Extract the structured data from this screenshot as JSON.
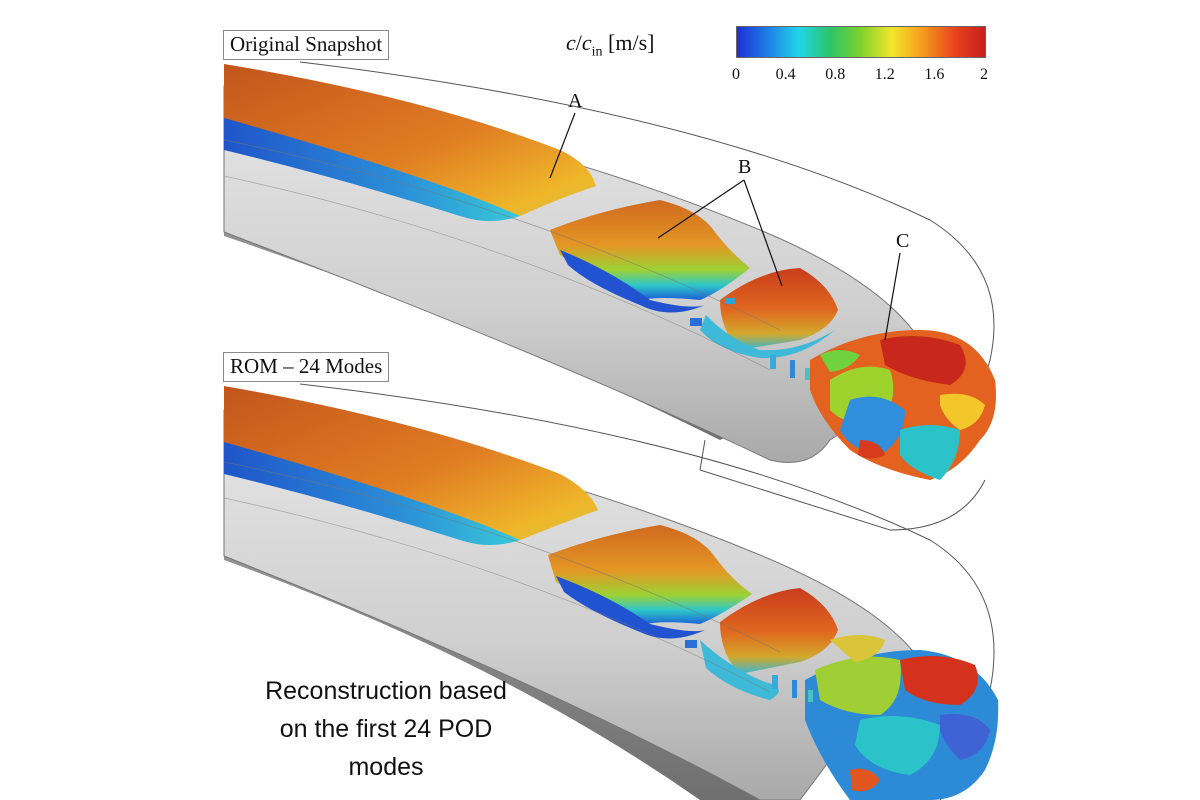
{
  "panels": {
    "top_label": "Original Snapshot",
    "bottom_label": "ROM – 24 Modes"
  },
  "legend": {
    "title_var": "c",
    "title_sep": "/",
    "title_var2": "c",
    "title_sub": "in",
    "title_units": " [m/s]",
    "ticks": [
      "0",
      "0.4",
      "0.8",
      "1.2",
      "1.6",
      "2"
    ],
    "colors": [
      "#1f2fd8",
      "#1e7fe6",
      "#22d6e8",
      "#2cc46a",
      "#7fd12c",
      "#f4e62b",
      "#f59a1c",
      "#e8451e",
      "#c81e1e"
    ]
  },
  "callouts": {
    "a": "A",
    "b": "B",
    "c": "C"
  },
  "caption": {
    "line1": "Reconstruction based",
    "line2": "on the first 24 POD",
    "line3": "modes"
  }
}
